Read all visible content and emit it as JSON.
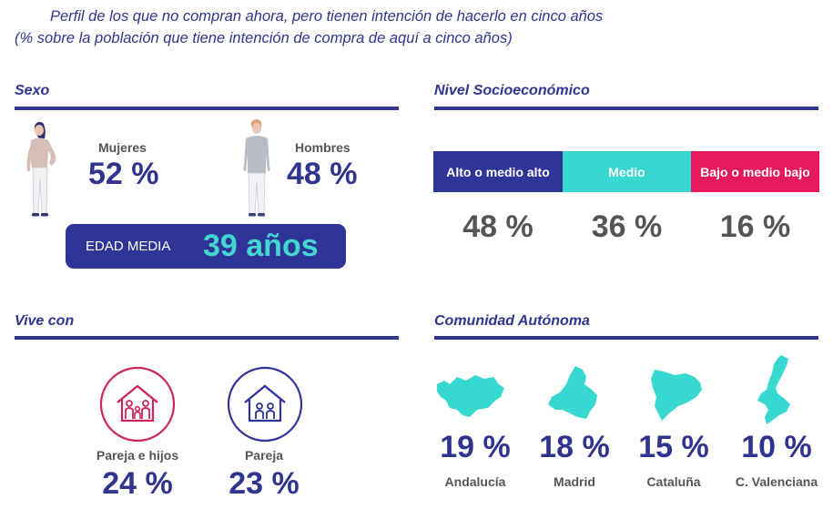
{
  "header": {
    "title": "Perfil de los que no compran ahora, pero tienen intención de hacerlo en cinco años",
    "subtitle": "(% sobre la población que tiene intención de compra de aquí a cinco años)"
  },
  "sexo": {
    "title": "Sexo",
    "mujeres": {
      "label": "Mujeres",
      "value": "52 %"
    },
    "hombres": {
      "label": "Hombres",
      "value": "48 %"
    },
    "edad_label": "EDAD MEDIA",
    "edad_value": "39 años"
  },
  "nivel": {
    "title": "Nivel Socioeconómico",
    "segments": [
      {
        "label": "Alto o medio alto",
        "value": "48 %",
        "color": "#2e3596"
      },
      {
        "label": "Medio",
        "value": "36 %",
        "color": "#36d8cf"
      },
      {
        "label": "Bajo o medio bajo",
        "value": "16 %",
        "color": "#e5195f"
      }
    ]
  },
  "vive": {
    "title": "Vive con",
    "items": [
      {
        "label": "Pareja e hijos",
        "value": "24 %",
        "color": "#d0245a",
        "icon": "family-house-icon"
      },
      {
        "label": "Pareja",
        "value": "23 %",
        "color": "#2e3596",
        "icon": "couple-house-icon"
      }
    ]
  },
  "comunidad": {
    "title": "Comunidad Autónoma",
    "items": [
      {
        "label": "Andalucía",
        "value": "19 %"
      },
      {
        "label": "Madrid",
        "value": "18 %"
      },
      {
        "label": "Cataluña",
        "value": "15 %"
      },
      {
        "label": "C. Valenciana",
        "value": "10 %"
      }
    ],
    "map_color": "#36d8cf"
  }
}
